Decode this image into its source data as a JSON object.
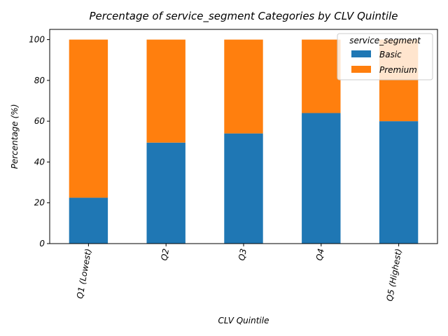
{
  "chart_data": {
    "type": "bar",
    "stacked": true,
    "title": "Percentage of service_segment Categories by CLV Quintile",
    "xlabel": "CLV Quintile",
    "ylabel": "Percentage (%)",
    "ylim": [
      0,
      105
    ],
    "yticks": [
      0,
      20,
      40,
      60,
      80,
      100
    ],
    "categories": [
      "Q1 (Lowest)",
      "Q2",
      "Q3",
      "Q4",
      "Q5 (Highest)"
    ],
    "series": [
      {
        "name": "Basic",
        "color": "#1f77b4",
        "values": [
          22.5,
          49.5,
          54,
          64,
          60
        ]
      },
      {
        "name": "Premium",
        "color": "#ff7f0e",
        "values": [
          77.5,
          50.5,
          46,
          36,
          40
        ]
      }
    ],
    "legend": {
      "title": "service_segment",
      "placement": "top-right"
    },
    "grid": false
  }
}
